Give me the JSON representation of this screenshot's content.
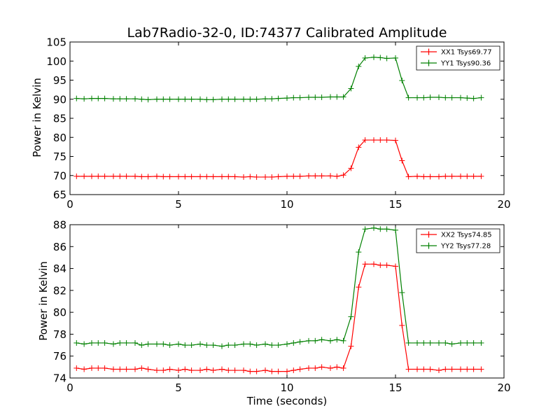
{
  "chart_data": [
    {
      "type": "line",
      "title": "Lab7Radio-32-0, ID:74377 Calibrated Amplitude",
      "xlabel": "",
      "ylabel": "Power in Kelvin",
      "xlim": [
        0,
        20
      ],
      "ylim": [
        65,
        105
      ],
      "x_ticks": [
        0,
        5,
        10,
        15,
        20
      ],
      "y_ticks": [
        65,
        70,
        75,
        80,
        85,
        90,
        95,
        100,
        105
      ],
      "grid": false,
      "legend_position": "top-right",
      "x": [
        0.3,
        0.65,
        1.0,
        1.3,
        1.6,
        2.0,
        2.3,
        2.6,
        3.0,
        3.3,
        3.6,
        4.0,
        4.3,
        4.6,
        5.0,
        5.3,
        5.6,
        6.0,
        6.3,
        6.6,
        7.0,
        7.3,
        7.6,
        8.0,
        8.3,
        8.6,
        9.0,
        9.3,
        9.6,
        10.0,
        10.3,
        10.6,
        11.0,
        11.3,
        11.6,
        12.0,
        12.3,
        12.6,
        12.95,
        13.3,
        13.6,
        14.0,
        14.3,
        14.6,
        15.0,
        15.3,
        15.6,
        16.0,
        16.3,
        16.6,
        17.0,
        17.3,
        17.6,
        18.0,
        18.3,
        18.6,
        18.95
      ],
      "series": [
        {
          "name": "XX1 Tsys69.77",
          "color": "#ff0000",
          "values": [
            69.8,
            69.8,
            69.8,
            69.8,
            69.8,
            69.8,
            69.8,
            69.8,
            69.8,
            69.7,
            69.7,
            69.8,
            69.7,
            69.7,
            69.7,
            69.7,
            69.7,
            69.7,
            69.7,
            69.7,
            69.7,
            69.7,
            69.7,
            69.6,
            69.7,
            69.6,
            69.6,
            69.6,
            69.7,
            69.8,
            69.8,
            69.8,
            69.9,
            69.9,
            69.9,
            69.9,
            69.8,
            70.1,
            71.9,
            77.4,
            79.3,
            79.3,
            79.3,
            79.3,
            79.2,
            73.9,
            69.7,
            69.8,
            69.7,
            69.7,
            69.7,
            69.8,
            69.8,
            69.8,
            69.8,
            69.8,
            69.8
          ]
        },
        {
          "name": "YY1 Tsys90.36",
          "color": "#008000",
          "values": [
            90.2,
            90.1,
            90.2,
            90.2,
            90.2,
            90.1,
            90.1,
            90.1,
            90.1,
            90.0,
            89.9,
            90.0,
            90.0,
            90.0,
            90.0,
            90.0,
            90.0,
            90.0,
            89.9,
            89.9,
            90.0,
            90.0,
            90.0,
            90.0,
            90.0,
            90.0,
            90.1,
            90.1,
            90.2,
            90.3,
            90.4,
            90.4,
            90.5,
            90.5,
            90.5,
            90.6,
            90.6,
            90.6,
            92.8,
            98.6,
            100.8,
            101.0,
            100.9,
            100.7,
            100.8,
            94.9,
            90.4,
            90.4,
            90.4,
            90.5,
            90.5,
            90.4,
            90.4,
            90.4,
            90.3,
            90.2,
            90.4
          ]
        }
      ]
    },
    {
      "type": "line",
      "title": "",
      "xlabel": "Time (seconds)",
      "ylabel": "Power in Kelvin",
      "xlim": [
        0,
        20
      ],
      "ylim": [
        74,
        88
      ],
      "x_ticks": [
        0,
        5,
        10,
        15,
        20
      ],
      "y_ticks": [
        74,
        76,
        78,
        80,
        82,
        84,
        86,
        88
      ],
      "grid": false,
      "legend_position": "top-right",
      "x": [
        0.3,
        0.65,
        1.0,
        1.3,
        1.6,
        2.0,
        2.3,
        2.6,
        3.0,
        3.3,
        3.6,
        4.0,
        4.3,
        4.6,
        5.0,
        5.3,
        5.6,
        6.0,
        6.3,
        6.6,
        7.0,
        7.3,
        7.6,
        8.0,
        8.3,
        8.6,
        9.0,
        9.3,
        9.6,
        10.0,
        10.3,
        10.6,
        11.0,
        11.3,
        11.6,
        12.0,
        12.3,
        12.6,
        12.95,
        13.3,
        13.6,
        14.0,
        14.3,
        14.6,
        15.0,
        15.3,
        15.6,
        16.0,
        16.3,
        16.6,
        17.0,
        17.3,
        17.6,
        18.0,
        18.3,
        18.6,
        18.95
      ],
      "series": [
        {
          "name": "XX2 Tsys74.85",
          "color": "#ff0000",
          "values": [
            74.9,
            74.8,
            74.9,
            74.9,
            74.9,
            74.8,
            74.8,
            74.8,
            74.8,
            74.9,
            74.8,
            74.7,
            74.7,
            74.8,
            74.7,
            74.8,
            74.7,
            74.7,
            74.8,
            74.7,
            74.8,
            74.7,
            74.7,
            74.7,
            74.6,
            74.6,
            74.7,
            74.6,
            74.6,
            74.6,
            74.7,
            74.8,
            74.9,
            74.9,
            75.0,
            74.9,
            75.0,
            74.9,
            76.9,
            82.3,
            84.4,
            84.4,
            84.3,
            84.3,
            84.2,
            78.8,
            74.8,
            74.8,
            74.8,
            74.8,
            74.7,
            74.8,
            74.8,
            74.8,
            74.8,
            74.8,
            74.8
          ]
        },
        {
          "name": "YY2 Tsys77.28",
          "color": "#008000",
          "values": [
            77.2,
            77.1,
            77.2,
            77.2,
            77.2,
            77.1,
            77.2,
            77.2,
            77.2,
            77.0,
            77.1,
            77.1,
            77.1,
            77.0,
            77.1,
            77.0,
            77.0,
            77.1,
            77.0,
            77.0,
            76.9,
            77.0,
            77.0,
            77.1,
            77.1,
            77.0,
            77.1,
            77.0,
            77.0,
            77.1,
            77.2,
            77.3,
            77.4,
            77.4,
            77.5,
            77.4,
            77.5,
            77.4,
            79.6,
            85.5,
            87.6,
            87.7,
            87.6,
            87.6,
            87.5,
            81.8,
            77.2,
            77.2,
            77.2,
            77.2,
            77.2,
            77.2,
            77.1,
            77.2,
            77.2,
            77.2,
            77.2
          ]
        }
      ]
    }
  ]
}
